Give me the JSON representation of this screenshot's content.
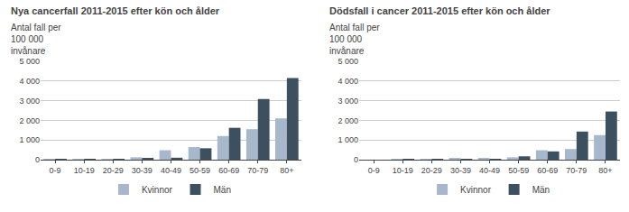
{
  "chart_data": [
    {
      "type": "bar",
      "title": "Nya cancerfall 2011-2015 efter kön och ålder",
      "ylabel": "Antal fall per\n100 000\ninvånare",
      "categories": [
        "0-9",
        "10-19",
        "20-29",
        "30-39",
        "40-49",
        "50-59",
        "60-69",
        "70-79",
        "80+"
      ],
      "series": [
        {
          "name": "Kvinnor",
          "color": "#a8b8cc",
          "values": [
            10,
            30,
            40,
            120,
            480,
            640,
            1200,
            1550,
            2100
          ]
        },
        {
          "name": "Män",
          "color": "#3d5060",
          "values": [
            15,
            35,
            30,
            80,
            100,
            580,
            1620,
            3080,
            4150
          ]
        }
      ],
      "ylim": [
        0,
        5000
      ],
      "yticks": [
        0,
        {
          "value": 1000,
          "label": "1 000"
        },
        {
          "value": 2000,
          "label": "2 000"
        },
        {
          "value": 3000,
          "label": "3 000"
        },
        {
          "value": 4000,
          "label": "4 000"
        },
        {
          "value": 5000,
          "label": "5 000"
        }
      ],
      "grid": true,
      "legend": "bottom"
    },
    {
      "type": "bar",
      "title": "Dödsfall i cancer 2011-2015 efter kön och ålder",
      "ylabel": "Antal fall per\n100 000\ninvånare",
      "categories": [
        "0-9",
        "10-19",
        "20-29",
        "30-39",
        "40-49",
        "50-59",
        "60-69",
        "70-79",
        "80+"
      ],
      "series": [
        {
          "name": "Kvinnor",
          "color": "#a8b8cc",
          "values": [
            0,
            30,
            10,
            50,
            50,
            120,
            480,
            540,
            1250
          ]
        },
        {
          "name": "Män",
          "color": "#3d5060",
          "values": [
            0,
            40,
            10,
            30,
            40,
            170,
            420,
            1430,
            2450
          ]
        }
      ],
      "ylim": [
        0,
        5000
      ],
      "yticks": [
        0,
        {
          "value": 1000,
          "label": "1 000"
        },
        {
          "value": 2000,
          "label": "2 000"
        },
        {
          "value": 3000,
          "label": "3 000"
        },
        {
          "value": 4000,
          "label": "4 000"
        },
        {
          "value": 5000,
          "label": "5 000"
        }
      ],
      "grid": true,
      "legend": "bottom"
    }
  ]
}
